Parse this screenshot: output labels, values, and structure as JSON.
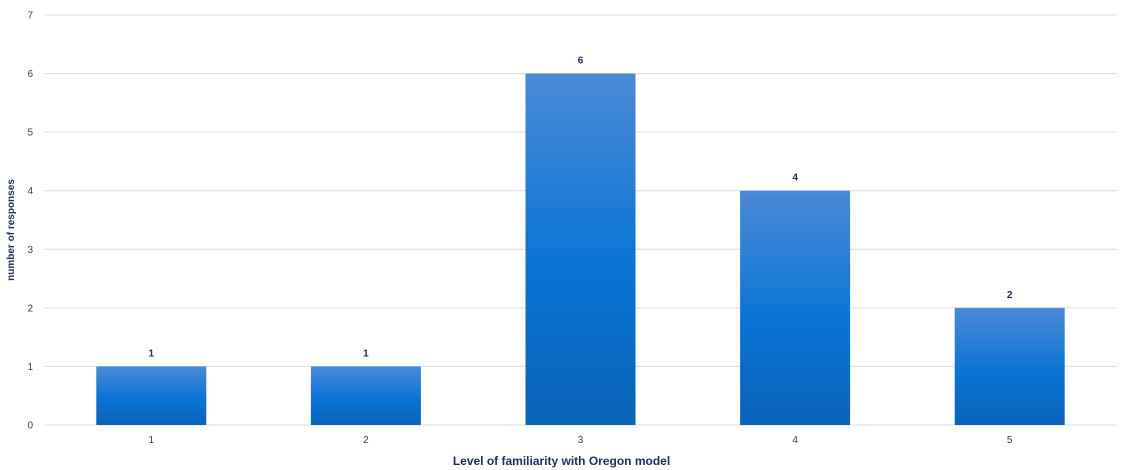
{
  "chart_data": {
    "type": "bar",
    "categories": [
      "1",
      "2",
      "3",
      "4",
      "5"
    ],
    "values": [
      1,
      1,
      6,
      4,
      2
    ],
    "xlabel": "Level of familiarity with Oregon model",
    "ylabel": "number of responses",
    "ylim": [
      0,
      7
    ],
    "yticks": [
      0,
      1,
      2,
      3,
      4,
      5,
      6,
      7
    ],
    "grid": true,
    "data_labels": true,
    "colors": {
      "bar_top": "#4a8ad6",
      "bar_mid": "#0a74d6",
      "bar_bottom": "#0a63b8",
      "grid": "#d9dce6",
      "axis_text": "#404040",
      "title_text": "#1f2d5c"
    }
  }
}
